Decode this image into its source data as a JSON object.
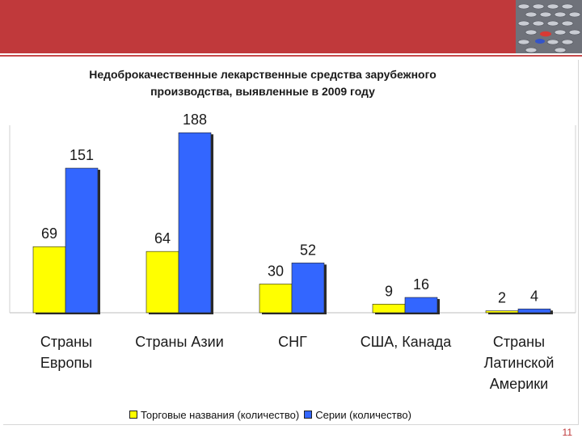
{
  "slide": {
    "page_number": "11"
  },
  "colors": {
    "header": "#c0393b",
    "series_yellow": "#ffff00",
    "series_blue": "#3366ff",
    "page_number": "#c0393b"
  },
  "chart_data": {
    "type": "bar",
    "title_line1": "Недоброкачественные лекарственные средства зарубежного",
    "title_line2": "производства, выявленные в 2009 году",
    "categories": [
      [
        "Страны",
        "Европы"
      ],
      [
        "Страны Азии"
      ],
      [
        "СНГ"
      ],
      [
        "США, Канада"
      ],
      [
        "Страны",
        "Латинской",
        "Америки"
      ]
    ],
    "series": [
      {
        "name": "Торговые названия (количество)",
        "color": "#ffff00",
        "values": [
          69,
          64,
          30,
          9,
          2
        ]
      },
      {
        "name": "Серии (количество)",
        "color": "#3366ff",
        "values": [
          151,
          188,
          52,
          16,
          4
        ]
      }
    ],
    "ylim": [
      0,
      200
    ],
    "grid": false,
    "legend_position": "bottom"
  }
}
